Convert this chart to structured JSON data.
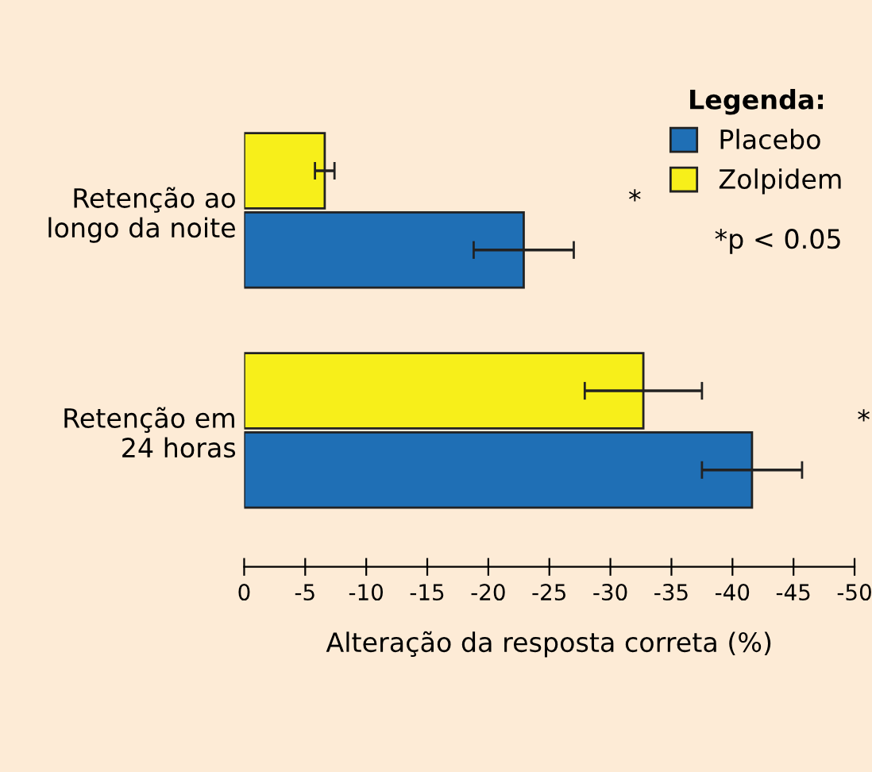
{
  "chart_data": {
    "type": "bar",
    "orientation": "horizontal",
    "xlabel": "Alteração da resposta correta (%)",
    "categories": [
      "Retenção ao\nlongo da noite",
      "Retenção em\n24 horas"
    ],
    "series": [
      {
        "name": "Zolpidem",
        "color": "#f7ef1a",
        "values": [
          -6.6,
          -32.7
        ],
        "errors": [
          0.8,
          4.8
        ]
      },
      {
        "name": "Placebo",
        "color": "#1f6fb5",
        "values": [
          -22.9,
          -41.6
        ],
        "errors": [
          4.1,
          4.1
        ]
      }
    ],
    "xlim": [
      0,
      -50
    ],
    "xticks": [
      0,
      -5,
      -10,
      -15,
      -20,
      -25,
      -30,
      -35,
      -40,
      -45,
      -50
    ],
    "legend": "top right",
    "legend_title": "Legenda:",
    "grid": false,
    "annotations": [
      "*",
      "*",
      "*p < 0.05"
    ]
  }
}
